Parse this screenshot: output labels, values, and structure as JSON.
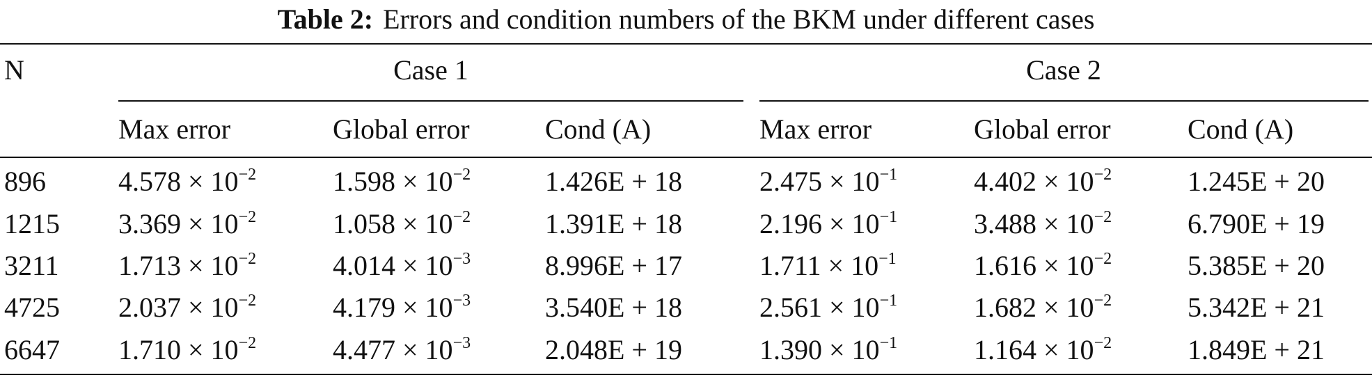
{
  "table": {
    "label": "Table 2:",
    "caption": "Errors and condition numbers of the BKM under different cases",
    "row_header": "N",
    "groups": [
      "Case 1",
      "Case 2"
    ],
    "columns": [
      "Max error",
      "Global error",
      "Cond (A)",
      "Max error",
      "Global error",
      "Cond (A)"
    ],
    "rows": [
      [
        "896",
        {
          "base": "4.578 × 10",
          "exp": "−2"
        },
        {
          "base": "1.598 × 10",
          "exp": "−2"
        },
        "1.426E + 18",
        {
          "base": "2.475 × 10",
          "exp": "−1"
        },
        {
          "base": "4.402 × 10",
          "exp": "−2"
        },
        "1.245E + 20"
      ],
      [
        "1215",
        {
          "base": "3.369 × 10",
          "exp": "−2"
        },
        {
          "base": "1.058 × 10",
          "exp": "−2"
        },
        "1.391E + 18",
        {
          "base": "2.196 × 10",
          "exp": "−1"
        },
        {
          "base": "3.488 × 10",
          "exp": "−2"
        },
        "6.790E + 19"
      ],
      [
        "3211",
        {
          "base": "1.713 × 10",
          "exp": "−2"
        },
        {
          "base": "4.014 × 10",
          "exp": "−3"
        },
        "8.996E + 17",
        {
          "base": "1.711 × 10",
          "exp": "−1"
        },
        {
          "base": "1.616 × 10",
          "exp": "−2"
        },
        "5.385E + 20"
      ],
      [
        "4725",
        {
          "base": "2.037 × 10",
          "exp": "−2"
        },
        {
          "base": "4.179 × 10",
          "exp": "−3"
        },
        "3.540E + 18",
        {
          "base": "2.561 × 10",
          "exp": "−1"
        },
        {
          "base": "1.682 × 10",
          "exp": "−2"
        },
        "5.342E + 21"
      ],
      [
        "6647",
        {
          "base": "1.710 × 10",
          "exp": "−2"
        },
        {
          "base": "4.477 × 10",
          "exp": "−3"
        },
        "2.048E + 19",
        {
          "base": "1.390 × 10",
          "exp": "−1"
        },
        {
          "base": "1.164 × 10",
          "exp": "−2"
        },
        "1.849E + 21"
      ]
    ]
  }
}
